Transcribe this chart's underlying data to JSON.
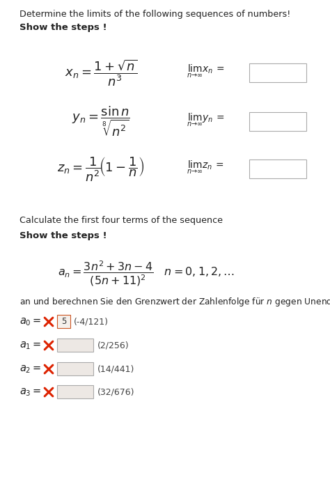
{
  "bg_color": "#ffffff",
  "title_text": "Determine the limits of the following sequences of numbers!",
  "show_steps_1": "Show the steps !",
  "calc_text": "Calculate the first four terms of the sequence",
  "show_steps_2": "Show the steps !",
  "german_text": "an und berechnen Sie den Grenzwert der Zahlenfolge für $n$ gegen Unend",
  "a0_answer": "(-4/121)",
  "a0_box_text": "5",
  "a1_answer": "(2/256)",
  "a2_answer": "(14/441)",
  "a3_answer": "(32/676)",
  "cross_color": "#dd2200",
  "box_fill_0": "#f5f0ec",
  "box_fill_empty": "#ede8e4",
  "box_border": "#999999",
  "text_color": "#222222",
  "answer_color": "#444444",
  "fig_w": 4.74,
  "fig_h": 6.92,
  "dpi": 100
}
